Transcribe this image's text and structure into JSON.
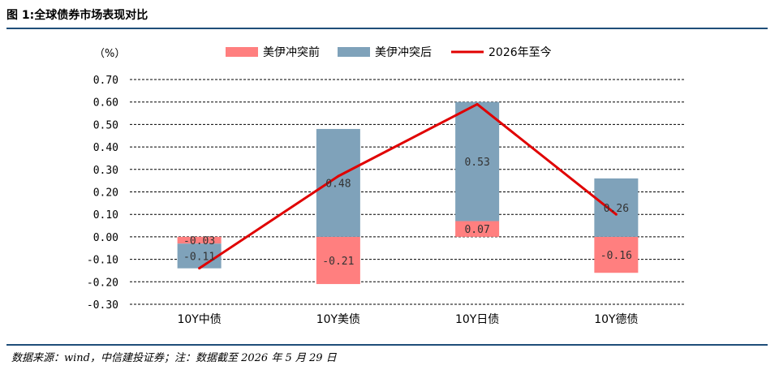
{
  "figure": {
    "title": "图 1:全球债券市场表现对比",
    "source": "数据来源：wind，中信建投证券；注：数据截至 2026 年 5 月 29 日"
  },
  "colors": {
    "before": "#ff7f7f",
    "after": "#7fa2ba",
    "line": "#e00000",
    "rule": "#1f4e79"
  },
  "chart_data": {
    "type": "bar",
    "stacked": true,
    "ylabel": "（%）",
    "ylim": [
      -0.3,
      0.7
    ],
    "yticks": [
      "0.70",
      "0.60",
      "0.50",
      "0.40",
      "0.30",
      "0.20",
      "0.10",
      "0.00",
      "-0.10",
      "-0.20",
      "-0.30"
    ],
    "ytick_values": [
      0.7,
      0.6,
      0.5,
      0.4,
      0.3,
      0.2,
      0.1,
      0.0,
      -0.1,
      -0.2,
      -0.3
    ],
    "grid": "horizontal dashed",
    "legend_position": "top",
    "categories": [
      "10Y中债",
      "10Y美债",
      "10Y日债",
      "10Y德债"
    ],
    "series": [
      {
        "name": "美伊冲突前",
        "kind": "bar",
        "values": [
          -0.03,
          -0.21,
          0.07,
          -0.16
        ],
        "labels": [
          "-0.03",
          "-0.21",
          "0.07",
          "-0.16"
        ]
      },
      {
        "name": "美伊冲突后",
        "kind": "bar",
        "values": [
          -0.11,
          0.48,
          0.53,
          0.26
        ],
        "labels": [
          "-0.11",
          "0.48",
          "0.53",
          "0.26"
        ]
      },
      {
        "name": "2026年至今",
        "kind": "line",
        "values": [
          -0.14,
          0.27,
          0.59,
          0.1
        ]
      }
    ]
  }
}
